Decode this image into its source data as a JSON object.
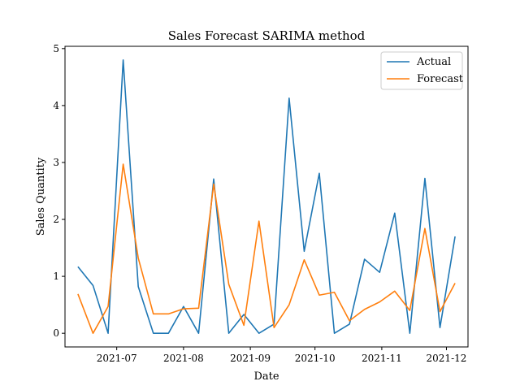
{
  "chart_data": {
    "type": "line",
    "title": "Sales Forecast SARIMA method",
    "xlabel": "Date",
    "ylabel": "Sales Quantity",
    "x": [
      "2021-06-13",
      "2021-06-20",
      "2021-06-27",
      "2021-07-04",
      "2021-07-11",
      "2021-07-18",
      "2021-07-25",
      "2021-08-01",
      "2021-08-08",
      "2021-08-15",
      "2021-08-22",
      "2021-08-29",
      "2021-09-05",
      "2021-09-12",
      "2021-09-19",
      "2021-09-26",
      "2021-10-03",
      "2021-10-10",
      "2021-10-17",
      "2021-10-24",
      "2021-10-31",
      "2021-11-07",
      "2021-11-14",
      "2021-11-21",
      "2021-11-28",
      "2021-12-05"
    ],
    "series": [
      {
        "name": "Actual",
        "color": "#1f77b4",
        "values": [
          1.17,
          0.84,
          0.0,
          4.8,
          0.82,
          0.0,
          0.0,
          0.47,
          0.0,
          2.71,
          0.0,
          0.33,
          0.0,
          0.16,
          4.13,
          1.44,
          2.81,
          0.0,
          0.16,
          1.3,
          1.07,
          2.11,
          0.0,
          2.72,
          0.1,
          1.7
        ]
      },
      {
        "name": "Forecast",
        "color": "#ff7f0e",
        "values": [
          0.69,
          0.0,
          0.47,
          2.97,
          1.32,
          0.34,
          0.34,
          0.43,
          0.44,
          2.62,
          0.86,
          0.14,
          1.97,
          0.1,
          0.5,
          1.29,
          0.67,
          0.72,
          0.22,
          0.42,
          0.55,
          0.74,
          0.4,
          1.84,
          0.38,
          0.88
        ]
      }
    ],
    "xticks": [
      "2021-07-01",
      "2021-08-01",
      "2021-09-01",
      "2021-10-01",
      "2021-11-01",
      "2021-12-01"
    ],
    "xtick_labels": [
      "2021-07",
      "2021-08",
      "2021-09",
      "2021-10",
      "2021-11",
      "2021-12"
    ],
    "xlim": [
      "2021-06-07",
      "2021-12-11"
    ],
    "yticks": [
      0,
      1,
      2,
      3,
      4,
      5
    ],
    "ytick_labels": [
      "0",
      "1",
      "2",
      "3",
      "4",
      "5"
    ],
    "ylim": [
      -0.24,
      5.04
    ],
    "grid": false,
    "legend_position": "top-right"
  }
}
